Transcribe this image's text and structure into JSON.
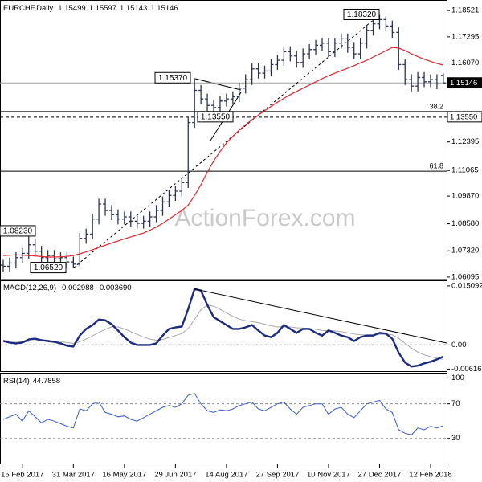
{
  "chart_data": {
    "type": "ohlc",
    "title": "EURCHF,Daily",
    "watermark": "ActionForex.com",
    "categories": [
      null,
      null,
      null,
      "15 Feb 2017",
      null,
      null,
      null,
      null,
      null,
      null,
      null,
      "31 Mar 2017",
      null,
      null,
      null,
      null,
      null,
      null,
      null,
      "16 May 2017",
      null,
      null,
      null,
      null,
      null,
      null,
      null,
      "29 Jun 2017",
      null,
      null,
      null,
      null,
      null,
      null,
      null,
      "14 Aug 2017",
      null,
      null,
      null,
      null,
      null,
      null,
      null,
      "27 Sep 2017",
      null,
      null,
      null,
      null,
      null,
      null,
      null,
      "10 Nov 2017",
      null,
      null,
      null,
      null,
      null,
      null,
      null,
      "27 Dec 2017",
      null,
      null,
      null,
      null,
      null,
      null,
      null,
      "12 Feb 2018",
      null,
      null
    ],
    "open": [
      1.0665,
      1.066,
      1.0675,
      1.07,
      1.072,
      1.076,
      1.073,
      1.07,
      1.071,
      1.0695,
      1.07,
      1.068,
      1.067,
      1.079,
      1.081,
      1.088,
      1.095,
      1.092,
      1.09,
      1.088,
      1.089,
      1.087,
      1.086,
      1.087,
      1.089,
      1.092,
      1.096,
      1.099,
      1.101,
      1.105,
      1.133,
      1.148,
      1.144,
      1.141,
      1.14,
      1.143,
      1.144,
      1.145,
      1.149,
      1.153,
      1.158,
      1.156,
      1.157,
      1.16,
      1.162,
      1.166,
      1.164,
      1.161,
      1.165,
      1.167,
      1.169,
      1.17,
      1.166,
      1.17,
      1.172,
      1.168,
      1.165,
      1.17,
      1.176,
      1.179,
      1.181,
      1.178,
      1.175,
      1.16,
      1.153,
      1.15,
      1.154,
      1.152,
      1.153,
      1.15499
    ],
    "high": [
      1.069,
      1.07,
      1.0725,
      1.0745,
      1.0823,
      1.0785,
      1.0755,
      1.0735,
      1.0735,
      1.0725,
      1.0725,
      1.0705,
      1.0815,
      1.0835,
      1.0905,
      1.0975,
      1.0975,
      1.0945,
      1.0925,
      1.0915,
      1.0915,
      1.0895,
      1.0895,
      1.0915,
      1.0945,
      1.0985,
      1.1015,
      1.1035,
      1.1075,
      1.1355,
      1.1537,
      1.1505,
      1.1465,
      1.1435,
      1.1455,
      1.1465,
      1.1475,
      1.1515,
      1.1555,
      1.1605,
      1.1605,
      1.1595,
      1.1625,
      1.1645,
      1.1685,
      1.1685,
      1.1665,
      1.1675,
      1.1695,
      1.1715,
      1.1725,
      1.1725,
      1.1725,
      1.1745,
      1.1745,
      1.1705,
      1.1725,
      1.1785,
      1.1815,
      1.1832,
      1.1825,
      1.1805,
      1.1775,
      1.1625,
      1.1555,
      1.1565,
      1.1565,
      1.1555,
      1.1555,
      1.15597
    ],
    "low": [
      1.0635,
      1.0635,
      1.065,
      1.0675,
      1.0695,
      1.0705,
      1.0675,
      1.0675,
      1.067,
      1.067,
      1.0655,
      1.0652,
      1.066,
      1.0765,
      1.0785,
      1.0855,
      1.0895,
      1.0875,
      1.0855,
      1.0855,
      1.0845,
      1.0835,
      1.0835,
      1.0845,
      1.0865,
      1.0895,
      1.0935,
      1.0965,
      1.0985,
      1.1025,
      1.1305,
      1.1415,
      1.1355,
      1.1375,
      1.1375,
      1.1405,
      1.1415,
      1.1425,
      1.1465,
      1.1505,
      1.1535,
      1.1535,
      1.1545,
      1.1575,
      1.1595,
      1.1615,
      1.1585,
      1.1585,
      1.1625,
      1.1645,
      1.1665,
      1.1635,
      1.1635,
      1.1675,
      1.1655,
      1.1625,
      1.1625,
      1.1675,
      1.1735,
      1.1765,
      1.1755,
      1.1725,
      1.1575,
      1.1505,
      1.1475,
      1.1475,
      1.1495,
      1.1495,
      1.1485,
      1.15143
    ],
    "close": [
      1.066,
      1.0675,
      1.07,
      1.072,
      1.076,
      1.073,
      1.07,
      1.071,
      1.0695,
      1.07,
      1.068,
      1.067,
      1.079,
      1.081,
      1.088,
      1.095,
      1.092,
      1.09,
      1.088,
      1.089,
      1.087,
      1.086,
      1.087,
      1.089,
      1.092,
      1.096,
      1.099,
      1.101,
      1.105,
      1.133,
      1.148,
      1.144,
      1.141,
      1.14,
      1.143,
      1.144,
      1.145,
      1.149,
      1.153,
      1.158,
      1.156,
      1.157,
      1.16,
      1.162,
      1.166,
      1.164,
      1.161,
      1.165,
      1.167,
      1.169,
      1.17,
      1.166,
      1.17,
      1.172,
      1.168,
      1.165,
      1.17,
      1.176,
      1.179,
      1.181,
      1.178,
      1.175,
      1.16,
      1.153,
      1.15,
      1.154,
      1.152,
      1.153,
      1.151,
      1.15146
    ],
    "bar_color": "#2b3553",
    "ma": [
      1.071,
      1.0712,
      1.0713,
      1.0712,
      1.071,
      1.0708,
      1.0705,
      1.0703,
      1.0703,
      1.0704,
      1.0706,
      1.071,
      1.0718,
      1.0727,
      1.0737,
      1.0748,
      1.0758,
      1.0768,
      1.0778,
      1.0788,
      1.0797,
      1.0806,
      1.0815,
      1.0828,
      1.0843,
      1.086,
      1.088,
      1.09,
      1.092,
      1.0945,
      1.099,
      1.104,
      1.11,
      1.115,
      1.1195,
      1.1235,
      1.1265,
      1.1295,
      1.132,
      1.1343,
      1.1365,
      1.1385,
      1.1405,
      1.1425,
      1.1443,
      1.146,
      1.1475,
      1.149,
      1.1505,
      1.152,
      1.1535,
      1.1548,
      1.156,
      1.1572,
      1.1583,
      1.1595,
      1.1608,
      1.162,
      1.1635,
      1.165,
      1.1665,
      1.168,
      1.1677,
      1.1665,
      1.165,
      1.1637,
      1.1625,
      1.1615,
      1.1605,
      1.1598
    ],
    "ma_color": "#e3262d",
    "ylim": [
      1.0598,
      1.189
    ],
    "yticks": [
      1.06095,
      {
        "value": 1.0732,
        "label": "1.07320"
      },
      {
        "value": 1.0858,
        "label": "1.08580"
      },
      {
        "value": 1.0987,
        "label": "1.09870"
      },
      1.11065,
      1.12395,
      {
        "value": 1.1607,
        "label": "1.16070"
      },
      1.17295,
      1.18521
    ],
    "annotations": [
      {
        "value": 1.1832,
        "label": "1.18320"
      },
      {
        "value": 1.1537,
        "label": "1.15370"
      },
      {
        "value": 1.1355,
        "label": "1.13550"
      },
      {
        "value": 1.0823,
        "label": "1.08230"
      },
      {
        "value": 1.0652,
        "label": "1.06520"
      }
    ],
    "fib_levels": [
      {
        "value": 1.1381,
        "label": "38.2"
      },
      {
        "value": 1.1103,
        "label": "61.8"
      }
    ],
    "macd": {
      "title": "MACD(12,26,9)",
      "macd": [
        0.001,
        0.0006,
        0.0004,
        0.0006,
        0.0014,
        0.0016,
        0.0012,
        0.001,
        0.0008,
        0.0004,
        -0.0002,
        -0.0004,
        0.0024,
        0.0041,
        0.0051,
        0.0065,
        0.0063,
        0.0053,
        0.0037,
        0.002,
        0.0006,
        0,
        0,
        0,
        0.0004,
        0.0024,
        0.0041,
        0.0045,
        0.0047,
        0.0092,
        0.0143,
        0.0139,
        0.0102,
        0.0071,
        0.0061,
        0.0051,
        0.0041,
        0.0041,
        0.0045,
        0.0051,
        0.0037,
        0.0024,
        0.002,
        0.0031,
        0.0051,
        0.0041,
        0.0031,
        0.0041,
        0.0041,
        0.0031,
        0.0024,
        0.0037,
        0.0031,
        0.0024,
        0.002,
        0.001,
        0.002,
        0.0024,
        0.0024,
        0.0031,
        0.0029,
        0.0016,
        -0.002,
        -0.0045,
        -0.0055,
        -0.0053,
        -0.0047,
        -0.0043,
        -0.0037,
        -0.002988
      ],
      "signal": [
        0.0012,
        0.001,
        0.0009,
        0.0008,
        0.0009,
        0.0011,
        0.0012,
        0.0011,
        0.001,
        0.0009,
        0.0006,
        0.0004,
        0.0008,
        0.0015,
        0.0023,
        0.0032,
        0.004,
        0.0046,
        0.0046,
        0.0041,
        0.0034,
        0.0027,
        0.002,
        0.0015,
        0.0012,
        0.0014,
        0.0019,
        0.0024,
        0.0029,
        0.0042,
        0.0065,
        0.009,
        0.0102,
        0.0099,
        0.0091,
        0.0082,
        0.0073,
        0.0066,
        0.0062,
        0.006,
        0.0057,
        0.0053,
        0.0049,
        0.0046,
        0.0047,
        0.0046,
        0.0044,
        0.0043,
        0.0042,
        0.004,
        0.0037,
        0.0037,
        0.0036,
        0.0034,
        0.0031,
        0.0028,
        0.0026,
        0.0026,
        0.0026,
        0.0027,
        0.0028,
        0.0026,
        0.0017,
        0.0004,
        -0.0008,
        -0.0018,
        -0.0025,
        -0.003,
        -0.0034,
        -0.00369
      ],
      "signal_label": "-0.003690",
      "macd_color": "#1c2a80",
      "signal_color": "#a8a8a8",
      "ylim": [
        -0.0069,
        0.0163
      ],
      "yticks": [
        0.015092,
        {
          "value": 0,
          "label": "0.00"
        },
        -0.006163
      ]
    },
    "rsi": {
      "title": "RSI(14)",
      "values": [
        52,
        55,
        58,
        50,
        62,
        55,
        48,
        52,
        50,
        47,
        44,
        42,
        64,
        62,
        70,
        72,
        60,
        58,
        55,
        56,
        52,
        50,
        54,
        58,
        62,
        66,
        68,
        66,
        70,
        80,
        82,
        70,
        62,
        60,
        63,
        62,
        64,
        68,
        70,
        72,
        64,
        62,
        66,
        70,
        72,
        64,
        58,
        66,
        68,
        70,
        70,
        58,
        64,
        66,
        58,
        54,
        62,
        70,
        72,
        74,
        64,
        60,
        40,
        36,
        34,
        42,
        40,
        44,
        42,
        44.7858
      ],
      "color": "#3a5cc8",
      "ylim": [
        0,
        105
      ],
      "yticks": [
        30,
        70,
        100
      ],
      "levels": [
        30,
        70
      ]
    }
  }
}
